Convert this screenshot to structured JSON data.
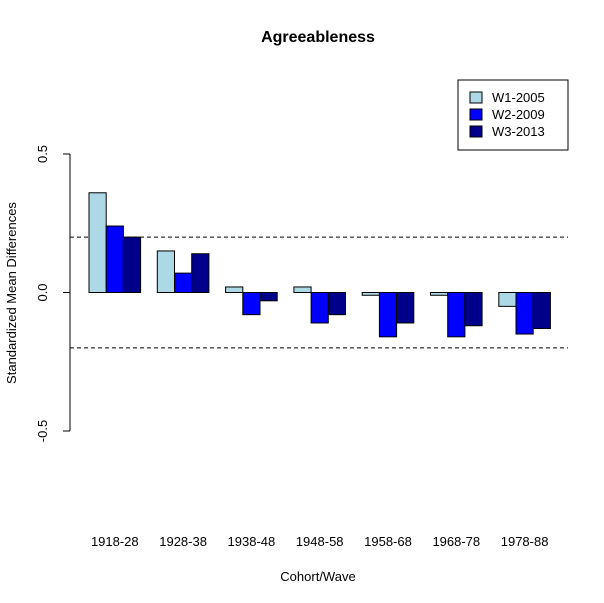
{
  "chart_data": {
    "type": "bar",
    "title": "Agreeableness",
    "xlabel": "Cohort/Wave",
    "ylabel": "Standardized Mean Differences",
    "categories": [
      "1918-28",
      "1928-38",
      "1938-48",
      "1948-58",
      "1958-68",
      "1968-78",
      "1978-88"
    ],
    "series": [
      {
        "name": "W1-2005",
        "color": "#ADD8E6",
        "values": [
          0.36,
          0.15,
          0.02,
          0.02,
          -0.01,
          -0.01,
          -0.05
        ]
      },
      {
        "name": "W2-2009",
        "color": "#0000FF",
        "values": [
          0.24,
          0.07,
          -0.08,
          -0.11,
          -0.16,
          -0.16,
          -0.15
        ]
      },
      {
        "name": "W3-2013",
        "color": "#00008B",
        "values": [
          0.2,
          0.14,
          -0.03,
          -0.08,
          -0.11,
          -0.12,
          -0.13
        ]
      }
    ],
    "yticks": [
      "-0.5",
      "0.0",
      "0.5"
    ],
    "ytick_values": [
      -0.5,
      0.0,
      0.5
    ],
    "ylim": [
      -0.5,
      0.5
    ],
    "reference_lines": [
      0.2,
      -0.2
    ],
    "legend_position": "top-right",
    "grid": false
  }
}
